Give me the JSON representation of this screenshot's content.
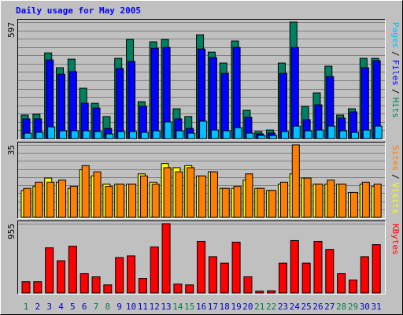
{
  "title": "Daily usage for May 2005",
  "chart_data": [
    {
      "type": "bar",
      "ylim": [
        0,
        597
      ],
      "yticks": [
        597
      ],
      "legend_separator": "/",
      "series": [
        {
          "name": "Hits",
          "color": "#008060",
          "values": [
            121,
            125,
            439,
            363,
            407,
            258,
            181,
            113,
            411,
            508,
            189,
            496,
            508,
            153,
            113,
            532,
            443,
            387,
            500,
            145,
            36,
            44,
            387,
            597,
            165,
            234,
            371,
            121,
            153,
            411,
            411
          ]
        },
        {
          "name": "Files",
          "color": "#0000ff",
          "values": [
            101,
            101,
            403,
            330,
            343,
            181,
            157,
            52,
            359,
            395,
            165,
            463,
            467,
            101,
            52,
            459,
            415,
            334,
            467,
            109,
            24,
            28,
            334,
            467,
            97,
            173,
            318,
            105,
            137,
            363,
            399
          ]
        },
        {
          "name": "Pages",
          "color": "#00c0ff",
          "values": [
            28,
            32,
            60,
            40,
            40,
            40,
            36,
            24,
            36,
            36,
            32,
            40,
            85,
            40,
            28,
            89,
            44,
            40,
            56,
            28,
            16,
            16,
            36,
            64,
            40,
            44,
            64,
            40,
            32,
            44,
            64
          ]
        }
      ]
    },
    {
      "type": "bar",
      "ylim": [
        0,
        35
      ],
      "yticks": [
        35
      ],
      "legend_separator": "/",
      "series": [
        {
          "name": "Visits",
          "color": "#ffff00",
          "values": [
            13,
            15,
            19,
            17,
            14,
            23,
            20,
            16,
            16,
            16,
            21,
            17,
            26,
            24,
            25,
            20,
            22,
            14,
            14,
            18,
            14,
            13,
            16,
            21,
            19,
            16,
            16,
            16,
            12,
            16,
            15
          ]
        },
        {
          "name": "Sites",
          "color": "#ff8000",
          "values": [
            14,
            17,
            17,
            18,
            15,
            25,
            22,
            15,
            16,
            16,
            20,
            16,
            24,
            22,
            24,
            20,
            22,
            14,
            15,
            21,
            14,
            13,
            17,
            35,
            19,
            16,
            18,
            16,
            12,
            17,
            16
          ]
        }
      ]
    },
    {
      "type": "bar",
      "ylim": [
        0,
        955
      ],
      "yticks": [
        955
      ],
      "categories": [
        "1",
        "2",
        "3",
        "4",
        "5",
        "6",
        "7",
        "8",
        "9",
        "10",
        "11",
        "12",
        "13",
        "14",
        "15",
        "16",
        "17",
        "18",
        "19",
        "20",
        "21",
        "22",
        "23",
        "24",
        "25",
        "26",
        "27",
        "28",
        "29",
        "30",
        "31"
      ],
      "category_colors": [
        "#008040",
        "#0000c0",
        "#0000c0",
        "#0000c0",
        "#0000c0",
        "#0000c0",
        "#008040",
        "#008040",
        "#0000c0",
        "#0000c0",
        "#0000c0",
        "#0000c0",
        "#0000c0",
        "#008040",
        "#008040",
        "#0000c0",
        "#0000c0",
        "#0000c0",
        "#0000c0",
        "#0000c0",
        "#008040",
        "#008040",
        "#0000c0",
        "#0000c0",
        "#0000c0",
        "#0000c0",
        "#0000c0",
        "#008040",
        "#008040",
        "#0000c0",
        "#0000c0"
      ],
      "series": [
        {
          "name": "KBytes",
          "color": "#ff0000",
          "values": [
            155,
            155,
            622,
            444,
            644,
            266,
            222,
            111,
            488,
            511,
            200,
            633,
            955,
            122,
            111,
            711,
            500,
            411,
            700,
            222,
            25,
            30,
            411,
            722,
            411,
            711,
            600,
            266,
            178,
            500,
            666
          ]
        }
      ]
    }
  ]
}
